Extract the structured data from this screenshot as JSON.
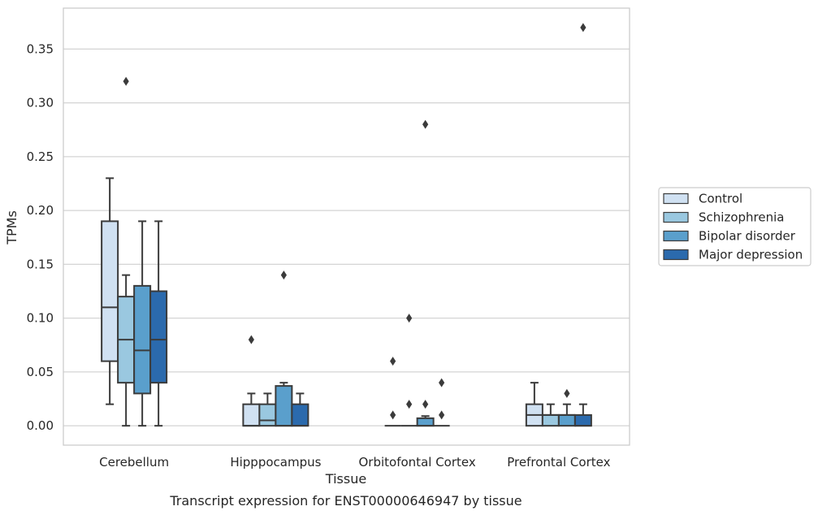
{
  "chart_data": {
    "type": "box",
    "xlabel": "Tissue",
    "ylabel": "TPMs",
    "caption": "Transcript expression for ENST00000646947 by tissue",
    "ylim": [
      -0.018,
      0.388
    ],
    "yticks": [
      0.0,
      0.05,
      0.1,
      0.15,
      0.2,
      0.25,
      0.3,
      0.35
    ],
    "ytick_labels": [
      "0.00",
      "0.05",
      "0.10",
      "0.15",
      "0.20",
      "0.25",
      "0.30",
      "0.35"
    ],
    "grid": "horizontal",
    "legend_position": "right",
    "categories": [
      "Cerebellum",
      "Hipppocampus",
      "Orbitofontal Cortex",
      "Prefrontal Cortex"
    ],
    "series": [
      {
        "name": "Control",
        "color": "#d0e1f2",
        "boxes": [
          {
            "whisker_low": 0.02,
            "q1": 0.06,
            "median": 0.11,
            "q3": 0.19,
            "whisker_high": 0.23,
            "outliers": []
          },
          {
            "whisker_low": 0.0,
            "q1": 0.0,
            "median": 0.0,
            "q3": 0.02,
            "whisker_high": 0.03,
            "outliers": [
              0.08
            ]
          },
          {
            "whisker_low": 0.0,
            "q1": 0.0,
            "median": 0.0,
            "q3": 0.0,
            "whisker_high": 0.0,
            "outliers": [
              0.06,
              0.01
            ]
          },
          {
            "whisker_low": 0.0,
            "q1": 0.0,
            "median": 0.01,
            "q3": 0.02,
            "whisker_high": 0.04,
            "outliers": []
          }
        ]
      },
      {
        "name": "Schizophrenia",
        "color": "#9ac8e0",
        "boxes": [
          {
            "whisker_low": 0.0,
            "q1": 0.04,
            "median": 0.08,
            "q3": 0.12,
            "whisker_high": 0.14,
            "outliers": [
              0.32
            ]
          },
          {
            "whisker_low": 0.0,
            "q1": 0.0,
            "median": 0.005,
            "q3": 0.02,
            "whisker_high": 0.03,
            "outliers": []
          },
          {
            "whisker_low": 0.0,
            "q1": 0.0,
            "median": 0.0,
            "q3": 0.0,
            "whisker_high": 0.0,
            "outliers": [
              0.1,
              0.02
            ]
          },
          {
            "whisker_low": 0.0,
            "q1": 0.0,
            "median": 0.01,
            "q3": 0.01,
            "whisker_high": 0.02,
            "outliers": []
          }
        ]
      },
      {
        "name": "Bipolar disorder",
        "color": "#5a9fcc",
        "boxes": [
          {
            "whisker_low": 0.0,
            "q1": 0.03,
            "median": 0.07,
            "q3": 0.13,
            "whisker_high": 0.19,
            "outliers": []
          },
          {
            "whisker_low": 0.0,
            "q1": 0.0,
            "median": 0.0,
            "q3": 0.037,
            "whisker_high": 0.04,
            "outliers": [
              0.14
            ]
          },
          {
            "whisker_low": 0.0,
            "q1": 0.0,
            "median": 0.0,
            "q3": 0.007,
            "whisker_high": 0.009,
            "outliers": [
              0.28,
              0.02
            ]
          },
          {
            "whisker_low": 0.0,
            "q1": 0.0,
            "median": 0.01,
            "q3": 0.01,
            "whisker_high": 0.02,
            "outliers": [
              0.03
            ]
          }
        ]
      },
      {
        "name": "Major depression",
        "color": "#2b6aad",
        "boxes": [
          {
            "whisker_low": 0.0,
            "q1": 0.04,
            "median": 0.08,
            "q3": 0.125,
            "whisker_high": 0.19,
            "outliers": []
          },
          {
            "whisker_low": 0.0,
            "q1": 0.0,
            "median": 0.0,
            "q3": 0.02,
            "whisker_high": 0.03,
            "outliers": []
          },
          {
            "whisker_low": 0.0,
            "q1": 0.0,
            "median": 0.0,
            "q3": 0.0,
            "whisker_high": 0.0,
            "outliers": [
              0.04,
              0.01
            ]
          },
          {
            "whisker_low": 0.0,
            "q1": 0.0,
            "median": 0.0,
            "q3": 0.01,
            "whisker_high": 0.02,
            "outliers": [
              0.37
            ]
          }
        ]
      }
    ]
  }
}
